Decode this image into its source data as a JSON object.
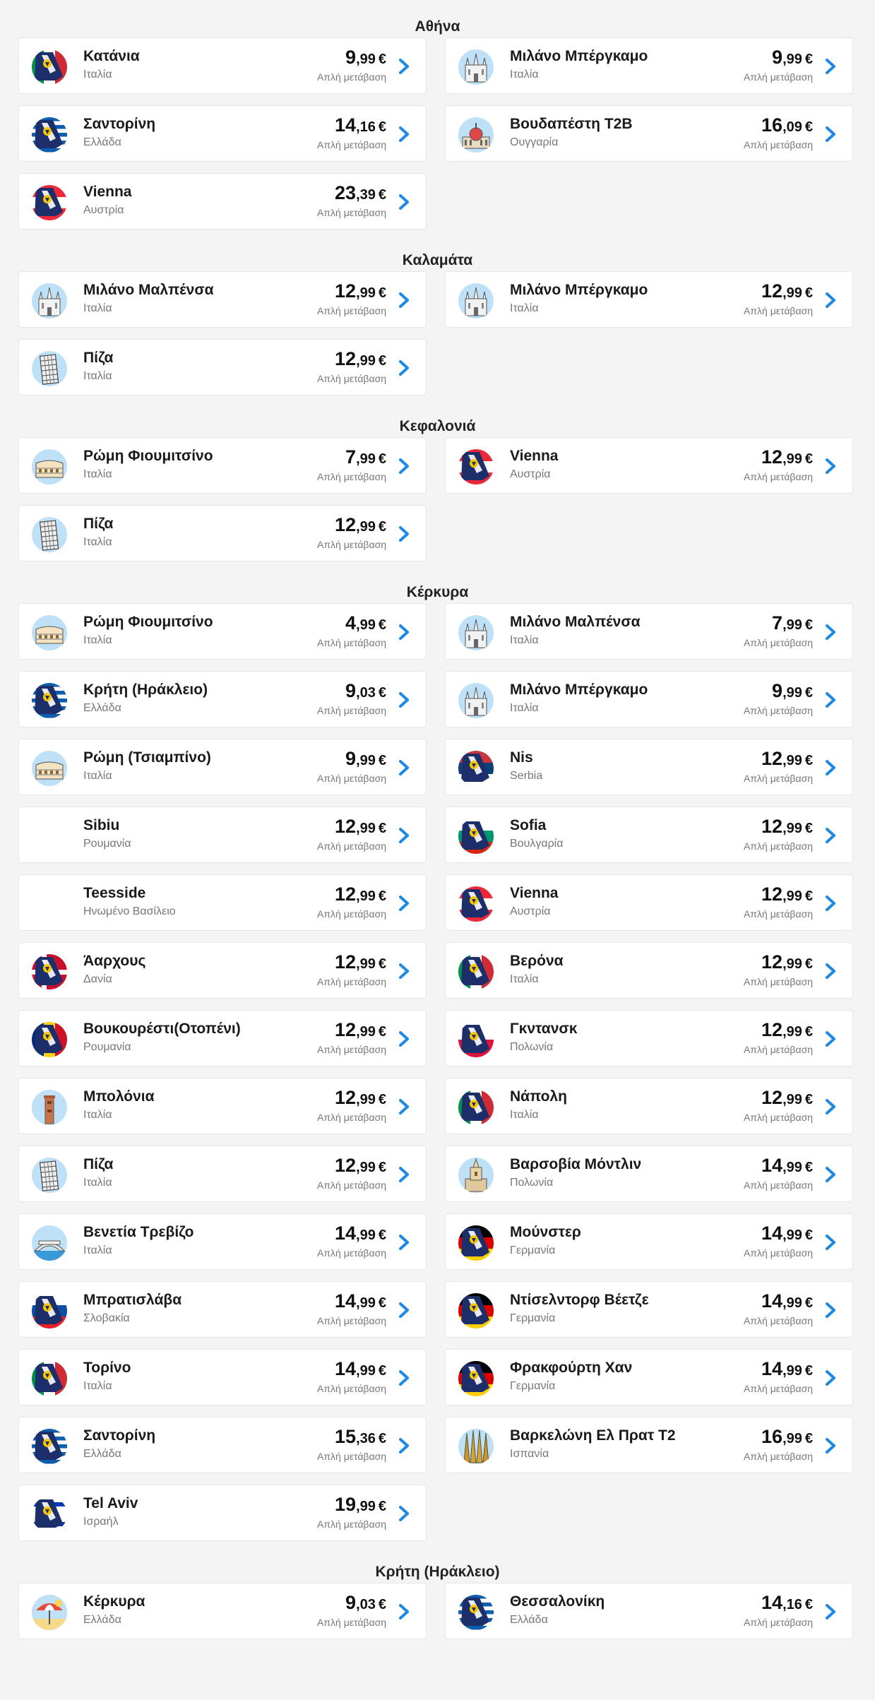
{
  "sections": [
    {
      "title": "Αθήνα",
      "routes": [
        {
          "icon": "plane-italy-icon",
          "name": "Κατάνια",
          "country": "Ιταλία",
          "price_int": "9",
          "price_dec": ",99",
          "currency": "€",
          "note": "Απλή μετάβαση"
        },
        {
          "icon": "milan-cathedral-icon",
          "name": "Μιλάνο Μπέργκαμο",
          "country": "Ιταλία",
          "price_int": "9",
          "price_dec": ",99",
          "currency": "€",
          "note": "Απλή μετάβαση"
        },
        {
          "icon": "plane-greece-icon",
          "name": "Σαντορίνη",
          "country": "Ελλάδα",
          "price_int": "14",
          "price_dec": ",16",
          "currency": "€",
          "note": "Απλή μετάβαση"
        },
        {
          "icon": "budapest-parliament-icon",
          "name": "Βουδαπέστη T2B",
          "country": "Ουγγαρία",
          "price_int": "16",
          "price_dec": ",09",
          "currency": "€",
          "note": "Απλή μετάβαση"
        },
        {
          "icon": "plane-austria-icon",
          "name": "Vienna",
          "country": "Αυστρία",
          "price_int": "23",
          "price_dec": ",39",
          "currency": "€",
          "note": "Απλή μετάβαση"
        }
      ]
    },
    {
      "title": "Καλαμάτα",
      "routes": [
        {
          "icon": "milan-cathedral-icon",
          "name": "Μιλάνο Μαλπένσα",
          "country": "Ιταλία",
          "price_int": "12",
          "price_dec": ",99",
          "currency": "€",
          "note": "Απλή μετάβαση"
        },
        {
          "icon": "milan-cathedral-icon",
          "name": "Μιλάνο Μπέργκαμο",
          "country": "Ιταλία",
          "price_int": "12",
          "price_dec": ",99",
          "currency": "€",
          "note": "Απλή μετάβαση"
        },
        {
          "icon": "pisa-tower-icon",
          "name": "Πίζα",
          "country": "Ιταλία",
          "price_int": "12",
          "price_dec": ",99",
          "currency": "€",
          "note": "Απλή μετάβαση"
        }
      ]
    },
    {
      "title": "Κεφαλονιά",
      "routes": [
        {
          "icon": "colosseum-icon",
          "name": "Ρώμη Φιουμιτσίνο",
          "country": "Ιταλία",
          "price_int": "7",
          "price_dec": ",99",
          "currency": "€",
          "note": "Απλή μετάβαση"
        },
        {
          "icon": "plane-austria-icon",
          "name": "Vienna",
          "country": "Αυστρία",
          "price_int": "12",
          "price_dec": ",99",
          "currency": "€",
          "note": "Απλή μετάβαση"
        },
        {
          "icon": "pisa-tower-icon",
          "name": "Πίζα",
          "country": "Ιταλία",
          "price_int": "12",
          "price_dec": ",99",
          "currency": "€",
          "note": "Απλή μετάβαση"
        }
      ]
    },
    {
      "title": "Κέρκυρα",
      "routes": [
        {
          "icon": "colosseum-icon",
          "name": "Ρώμη Φιουμιτσίνο",
          "country": "Ιταλία",
          "price_int": "4",
          "price_dec": ",99",
          "currency": "€",
          "note": "Απλή μετάβαση"
        },
        {
          "icon": "milan-cathedral-icon",
          "name": "Μιλάνο Μαλπένσα",
          "country": "Ιταλία",
          "price_int": "7",
          "price_dec": ",99",
          "currency": "€",
          "note": "Απλή μετάβαση"
        },
        {
          "icon": "plane-greece-icon",
          "name": "Κρήτη (Ηράκλειο)",
          "country": "Ελλάδα",
          "price_int": "9",
          "price_dec": ",03",
          "currency": "€",
          "note": "Απλή μετάβαση"
        },
        {
          "icon": "milan-cathedral-icon",
          "name": "Μιλάνο Μπέργκαμο",
          "country": "Ιταλία",
          "price_int": "9",
          "price_dec": ",99",
          "currency": "€",
          "note": "Απλή μετάβαση"
        },
        {
          "icon": "colosseum-icon",
          "name": "Ρώμη (Τσιαμπίνο)",
          "country": "Ιταλία",
          "price_int": "9",
          "price_dec": ",99",
          "currency": "€",
          "note": "Απλή μετάβαση"
        },
        {
          "icon": "plane-serbia-icon",
          "name": "Nis",
          "country": "Serbia",
          "price_int": "12",
          "price_dec": ",99",
          "currency": "€",
          "note": "Απλή μετάβαση"
        },
        {
          "icon": "none",
          "name": "Sibiu",
          "country": "Ρουμανία",
          "price_int": "12",
          "price_dec": ",99",
          "currency": "€",
          "note": "Απλή μετάβαση"
        },
        {
          "icon": "plane-bulgaria-icon",
          "name": "Sofia",
          "country": "Βουλγαρία",
          "price_int": "12",
          "price_dec": ",99",
          "currency": "€",
          "note": "Απλή μετάβαση"
        },
        {
          "icon": "none",
          "name": "Teesside",
          "country": "Ηνωμένο Βασίλειο",
          "price_int": "12",
          "price_dec": ",99",
          "currency": "€",
          "note": "Απλή μετάβαση"
        },
        {
          "icon": "plane-austria-icon",
          "name": "Vienna",
          "country": "Αυστρία",
          "price_int": "12",
          "price_dec": ",99",
          "currency": "€",
          "note": "Απλή μετάβαση"
        },
        {
          "icon": "plane-denmark-icon",
          "name": "Άαρχους",
          "country": "Δανία",
          "price_int": "12",
          "price_dec": ",99",
          "currency": "€",
          "note": "Απλή μετάβαση"
        },
        {
          "icon": "plane-italy-icon",
          "name": "Βερόνα",
          "country": "Ιταλία",
          "price_int": "12",
          "price_dec": ",99",
          "currency": "€",
          "note": "Απλή μετάβαση"
        },
        {
          "icon": "plane-romania-icon",
          "name": "Βουκουρέστι(Οτοπένι)",
          "country": "Ρουμανία",
          "price_int": "12",
          "price_dec": ",99",
          "currency": "€",
          "note": "Απλή μετάβαση"
        },
        {
          "icon": "plane-poland-icon",
          "name": "Γκντανσκ",
          "country": "Πολωνία",
          "price_int": "12",
          "price_dec": ",99",
          "currency": "€",
          "note": "Απλή μετάβαση"
        },
        {
          "icon": "bologna-tower-icon",
          "name": "Μπολόνια",
          "country": "Ιταλία",
          "price_int": "12",
          "price_dec": ",99",
          "currency": "€",
          "note": "Απλή μετάβαση"
        },
        {
          "icon": "plane-italy-icon",
          "name": "Νάπολη",
          "country": "Ιταλία",
          "price_int": "12",
          "price_dec": ",99",
          "currency": "€",
          "note": "Απλή μετάβαση"
        },
        {
          "icon": "pisa-tower-icon",
          "name": "Πίζα",
          "country": "Ιταλία",
          "price_int": "12",
          "price_dec": ",99",
          "currency": "€",
          "note": "Απλή μετάβαση"
        },
        {
          "icon": "warsaw-palace-icon",
          "name": "Βαρσοβία Μόντλιν",
          "country": "Πολωνία",
          "price_int": "14",
          "price_dec": ",99",
          "currency": "€",
          "note": "Απλή μετάβαση"
        },
        {
          "icon": "venice-bridge-icon",
          "name": "Βενετία Τρεβίζο",
          "country": "Ιταλία",
          "price_int": "14",
          "price_dec": ",99",
          "currency": "€",
          "note": "Απλή μετάβαση"
        },
        {
          "icon": "plane-germany-icon",
          "name": "Μούνστερ",
          "country": "Γερμανία",
          "price_int": "14",
          "price_dec": ",99",
          "currency": "€",
          "note": "Απλή μετάβαση"
        },
        {
          "icon": "plane-slovakia-icon",
          "name": "Μπρατισλάβα",
          "country": "Σλοβακία",
          "price_int": "14",
          "price_dec": ",99",
          "currency": "€",
          "note": "Απλή μετάβαση"
        },
        {
          "icon": "plane-germany-icon",
          "name": "Ντίσελντορφ Βέετζε",
          "country": "Γερμανία",
          "price_int": "14",
          "price_dec": ",99",
          "currency": "€",
          "note": "Απλή μετάβαση"
        },
        {
          "icon": "plane-italy-icon",
          "name": "Τορίνο",
          "country": "Ιταλία",
          "price_int": "14",
          "price_dec": ",99",
          "currency": "€",
          "note": "Απλή μετάβαση"
        },
        {
          "icon": "plane-germany-icon",
          "name": "Φρακφούρτη Χαν",
          "country": "Γερμανία",
          "price_int": "14",
          "price_dec": ",99",
          "currency": "€",
          "note": "Απλή μετάβαση"
        },
        {
          "icon": "plane-greece-icon",
          "name": "Σαντορίνη",
          "country": "Ελλάδα",
          "price_int": "15",
          "price_dec": ",36",
          "currency": "€",
          "note": "Απλή μετάβαση"
        },
        {
          "icon": "sagrada-familia-icon",
          "name": "Βαρκελώνη Ελ Πρατ T2",
          "country": "Ισπανία",
          "price_int": "16",
          "price_dec": ",99",
          "currency": "€",
          "note": "Απλή μετάβαση"
        },
        {
          "icon": "plane-israel-icon",
          "name": "Tel Aviv",
          "country": "Ισραήλ",
          "price_int": "19",
          "price_dec": ",99",
          "currency": "€",
          "note": "Απλή μετάβαση"
        }
      ]
    },
    {
      "title": "Κρήτη (Ηράκλειο)",
      "routes": [
        {
          "icon": "beach-umbrella-icon",
          "name": "Κέρκυρα",
          "country": "Ελλάδα",
          "price_int": "9",
          "price_dec": ",03",
          "currency": "€",
          "note": "Απλή μετάβαση"
        },
        {
          "icon": "plane-greece-icon",
          "name": "Θεσσαλονίκη",
          "country": "Ελλάδα",
          "price_int": "14",
          "price_dec": ",16",
          "currency": "€",
          "note": "Απλή μετάβαση"
        }
      ]
    }
  ],
  "colors": {
    "accent": "#1e88e5",
    "tail_navy": "#1c2f6b",
    "logo_yellow": "#f7c600"
  }
}
